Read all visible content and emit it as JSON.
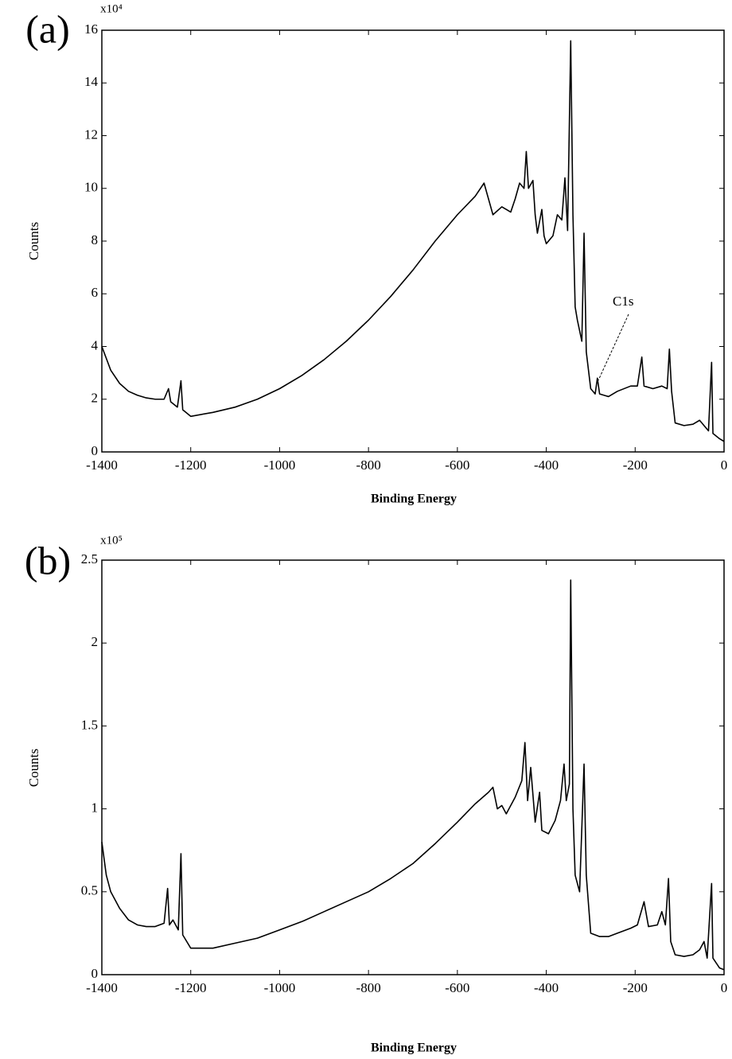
{
  "chart_data": [
    {
      "type": "line",
      "label": "(a)",
      "y_multiplier": "x10⁴",
      "ylabel": "Counts",
      "xlabel": "Binding Energy",
      "annotation": "C1s",
      "color": "#000000",
      "xlim": [
        -1400,
        0
      ],
      "xticks": [
        -1400,
        -1200,
        -1000,
        -800,
        -600,
        -400,
        -200,
        0
      ],
      "ylim": [
        0,
        16
      ],
      "yticks": [
        0,
        2,
        4,
        6,
        8,
        10,
        12,
        14,
        16
      ],
      "x": [
        -1400,
        -1380,
        -1360,
        -1340,
        -1320,
        -1300,
        -1280,
        -1260,
        -1250,
        -1245,
        -1230,
        -1222,
        -1218,
        -1200,
        -1150,
        -1100,
        -1050,
        -1000,
        -950,
        -900,
        -850,
        -800,
        -750,
        -700,
        -650,
        -600,
        -560,
        -540,
        -530,
        -520,
        -500,
        -480,
        -470,
        -460,
        -450,
        -445,
        -440,
        -430,
        -425,
        -420,
        -410,
        -405,
        -400,
        -385,
        -375,
        -365,
        -358,
        -352,
        -345,
        -340,
        -335,
        -330,
        -320,
        -315,
        -310,
        -300,
        -290,
        -285,
        -280,
        -260,
        -240,
        -210,
        -195,
        -185,
        -180,
        -160,
        -140,
        -128,
        -123,
        -118,
        -110,
        -90,
        -70,
        -55,
        -45,
        -35,
        -28,
        -25,
        -10,
        0
      ],
      "values": [
        4.0,
        3.1,
        2.6,
        2.3,
        2.15,
        2.05,
        2.0,
        2.0,
        2.4,
        1.9,
        1.7,
        2.7,
        1.6,
        1.35,
        1.5,
        1.7,
        2.0,
        2.4,
        2.9,
        3.5,
        4.2,
        5.0,
        5.9,
        6.9,
        8.0,
        9.0,
        9.7,
        10.2,
        9.6,
        9.0,
        9.3,
        9.1,
        9.6,
        10.2,
        10.0,
        11.4,
        10.0,
        10.3,
        9.0,
        8.3,
        9.2,
        8.2,
        7.9,
        8.2,
        9.0,
        8.8,
        10.4,
        8.4,
        15.6,
        9.0,
        5.5,
        5.0,
        4.2,
        8.3,
        3.8,
        2.4,
        2.2,
        2.8,
        2.2,
        2.1,
        2.3,
        2.5,
        2.5,
        3.6,
        2.5,
        2.4,
        2.5,
        2.4,
        3.9,
        2.3,
        1.1,
        1.0,
        1.05,
        1.2,
        1.0,
        0.8,
        3.4,
        0.7,
        0.5,
        0.4
      ]
    },
    {
      "type": "line",
      "label": "(b)",
      "y_multiplier": "x10⁵",
      "ylabel": "Counts",
      "xlabel": "Binding Energy",
      "color": "#000000",
      "xlim": [
        -1400,
        0
      ],
      "xticks": [
        -1400,
        -1200,
        -1000,
        -800,
        -600,
        -400,
        -200,
        0
      ],
      "ylim": [
        0,
        2.5
      ],
      "yticks": [
        0,
        0.5,
        1,
        1.5,
        2,
        2.5
      ],
      "x": [
        -1400,
        -1390,
        -1380,
        -1360,
        -1340,
        -1320,
        -1300,
        -1280,
        -1260,
        -1252,
        -1248,
        -1240,
        -1228,
        -1222,
        -1218,
        -1200,
        -1150,
        -1100,
        -1050,
        -1000,
        -950,
        -900,
        -850,
        -800,
        -750,
        -700,
        -650,
        -600,
        -560,
        -530,
        -520,
        -510,
        -500,
        -490,
        -470,
        -455,
        -448,
        -442,
        -435,
        -425,
        -415,
        -410,
        -395,
        -380,
        -368,
        -360,
        -355,
        -348,
        -345,
        -340,
        -335,
        -325,
        -315,
        -310,
        -300,
        -280,
        -260,
        -240,
        -210,
        -195,
        -180,
        -170,
        -150,
        -140,
        -132,
        -125,
        -120,
        -110,
        -90,
        -70,
        -55,
        -45,
        -38,
        -28,
        -25,
        -10,
        0
      ],
      "values": [
        0.8,
        0.6,
        0.5,
        0.4,
        0.33,
        0.3,
        0.29,
        0.29,
        0.31,
        0.52,
        0.3,
        0.33,
        0.27,
        0.73,
        0.24,
        0.16,
        0.16,
        0.19,
        0.22,
        0.27,
        0.32,
        0.38,
        0.44,
        0.5,
        0.58,
        0.67,
        0.79,
        0.92,
        1.03,
        1.1,
        1.13,
        1.0,
        1.02,
        0.97,
        1.07,
        1.17,
        1.4,
        1.05,
        1.25,
        0.92,
        1.1,
        0.87,
        0.85,
        0.93,
        1.05,
        1.27,
        1.05,
        1.15,
        2.38,
        1.0,
        0.6,
        0.5,
        1.27,
        0.6,
        0.25,
        0.23,
        0.23,
        0.25,
        0.28,
        0.3,
        0.44,
        0.29,
        0.3,
        0.38,
        0.3,
        0.58,
        0.2,
        0.12,
        0.11,
        0.12,
        0.15,
        0.2,
        0.1,
        0.55,
        0.1,
        0.04,
        0.03
      ]
    }
  ]
}
